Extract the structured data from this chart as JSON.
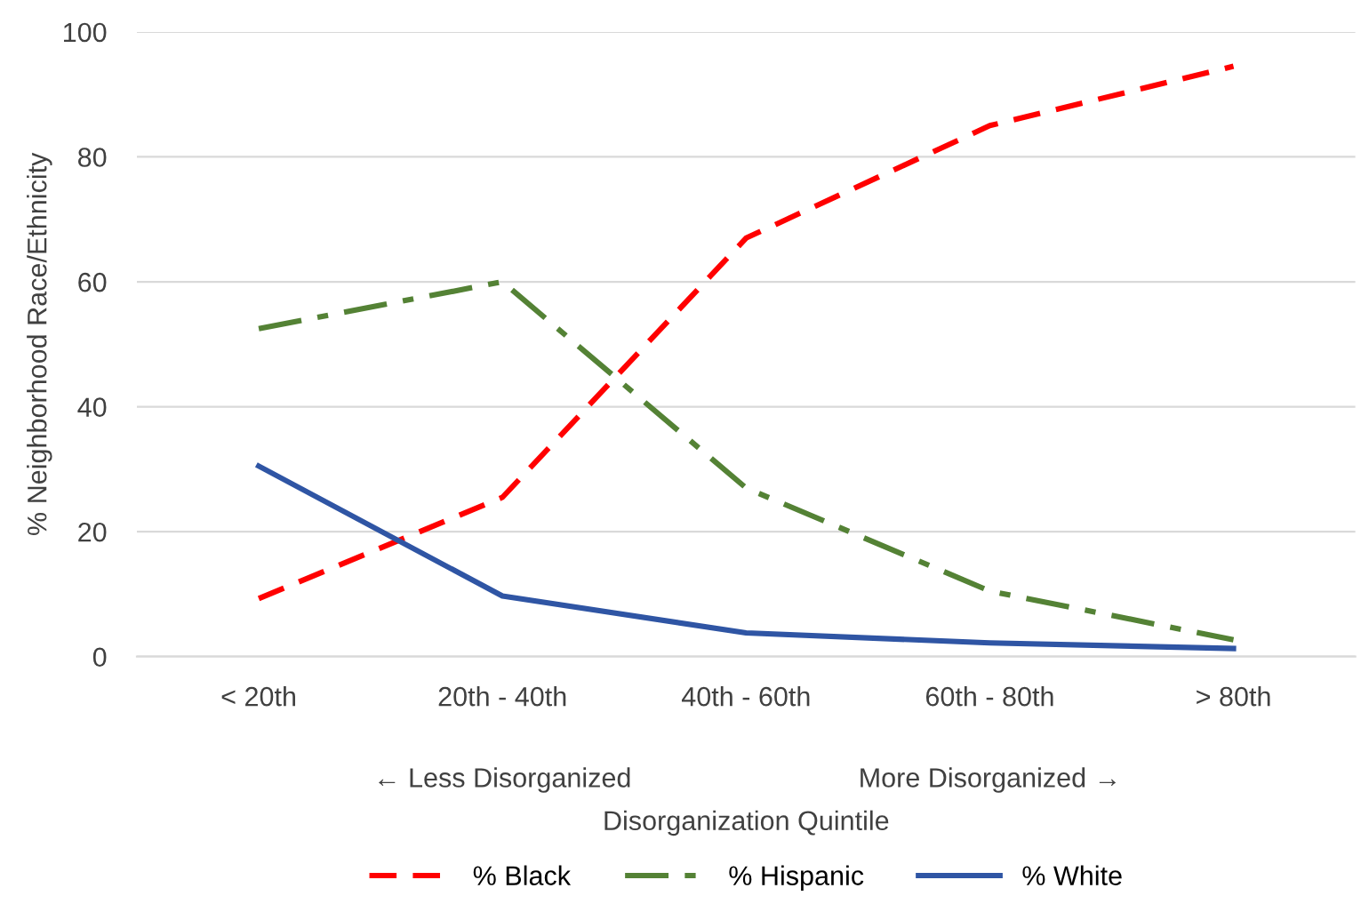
{
  "chart_data": {
    "type": "line",
    "xlabel": "Disorganization Quintile",
    "ylabel": "% Neighborhood Race/Ethnicity",
    "categories": [
      "< 20th",
      "20th - 40th",
      "40th - 60th",
      "60th - 80th",
      "> 80th"
    ],
    "series": [
      {
        "name": "% Black",
        "color": "#ff0000",
        "line_style": "dashed",
        "values": [
          9.3,
          25.5,
          67,
          85,
          94.5
        ]
      },
      {
        "name": "% Hispanic",
        "color": "#548235",
        "line_style": "dashdot",
        "values": [
          52.5,
          60,
          27,
          10.5,
          2.7
        ]
      },
      {
        "name": "% White",
        "color": "#2f55a4",
        "line_style": "solid",
        "values": [
          30.5,
          9.7,
          3.8,
          2.2,
          1.3
        ]
      }
    ],
    "ylim": [
      0,
      100
    ],
    "yticks": [
      0,
      20,
      40,
      60,
      80,
      100
    ],
    "grid": "y",
    "legend": "bottom",
    "annotations": [
      "← Less Disorganized",
      "More Disorganized →"
    ]
  }
}
